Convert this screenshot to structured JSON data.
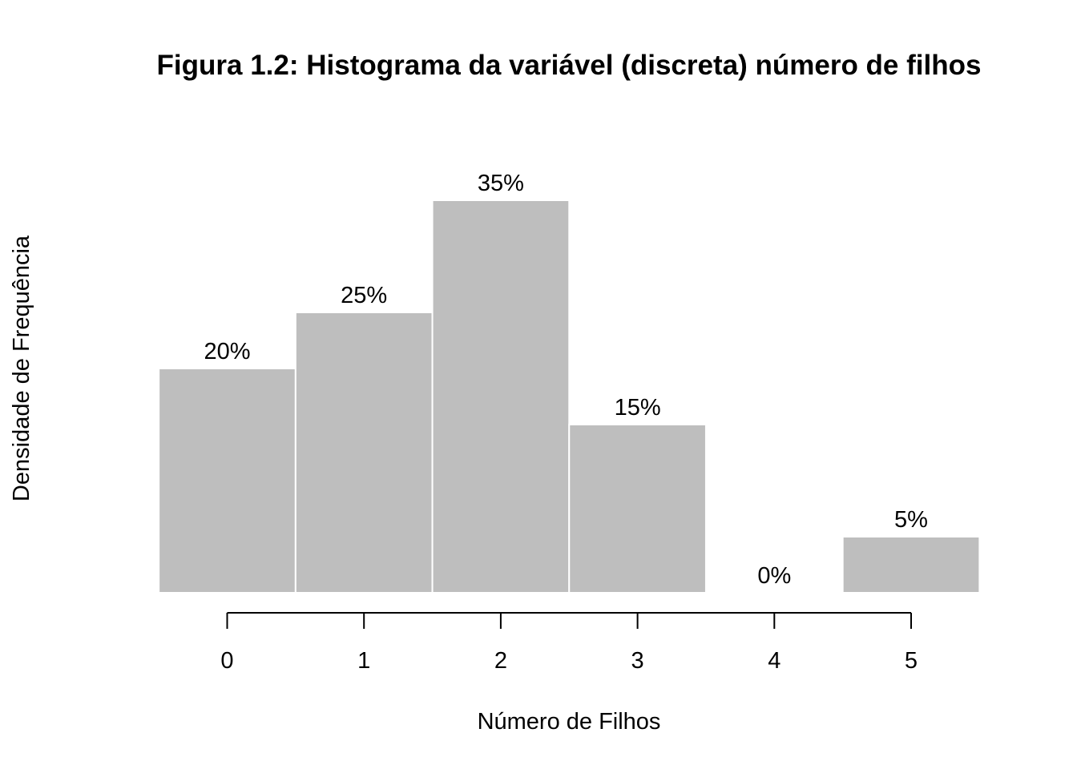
{
  "chart_data": {
    "type": "bar",
    "title": "Figura 1.2: Histograma da variável (discreta) número de filhos",
    "xlabel": "Número de Filhos",
    "ylabel": "Densidade de Frequência",
    "categories": [
      "0",
      "1",
      "2",
      "3",
      "4",
      "5"
    ],
    "x": [
      0,
      1,
      2,
      3,
      4,
      5
    ],
    "values": [
      20,
      25,
      35,
      15,
      0,
      5
    ],
    "data_labels": [
      "20%",
      "25%",
      "35%",
      "15%",
      "0%",
      "5%"
    ],
    "ylim": [
      0,
      35
    ],
    "bar_color": "#bebebe",
    "grid": false,
    "y_axis_visible": false
  }
}
